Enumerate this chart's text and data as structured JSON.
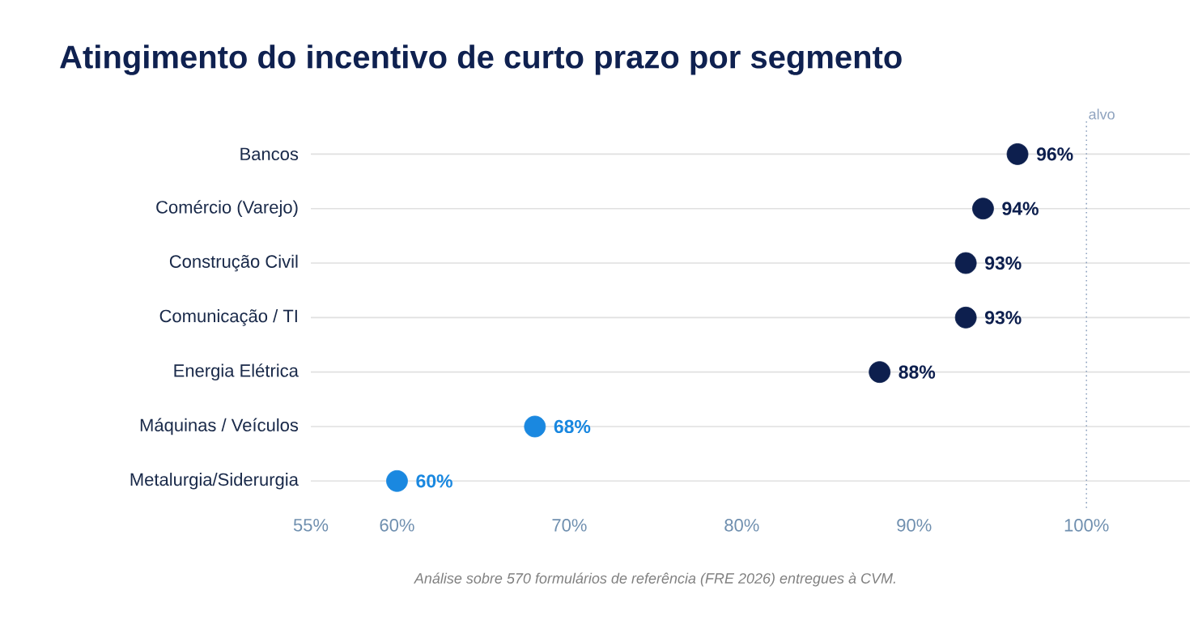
{
  "chart_data": {
    "type": "scatter",
    "title": "Atingimento do incentivo de curto prazo por segmento",
    "categories": [
      "Bancos",
      "Comércio (Varejo)",
      "Construção Civil",
      "Comunicação / TI",
      "Energia Elétrica",
      "Máquinas / Veículos",
      "Metalurgia/Siderurgia"
    ],
    "values": [
      96,
      94,
      93,
      93,
      88,
      68,
      60
    ],
    "value_labels": [
      "96%",
      "94%",
      "93%",
      "93%",
      "88%",
      "68%",
      "60%"
    ],
    "colors": [
      "#0d1f4e",
      "#0d1f4e",
      "#0d1f4e",
      "#0d1f4e",
      "#0d1f4e",
      "#1a88e0",
      "#1a88e0"
    ],
    "orientation": "horizontal",
    "marker": "circle",
    "grid": "y",
    "xlim": [
      55,
      106
    ],
    "xticks": [
      {
        "value": 55,
        "label": "55%"
      },
      {
        "value": 60,
        "label": "60%"
      },
      {
        "value": 70,
        "label": "70%"
      },
      {
        "value": 80,
        "label": "80%"
      },
      {
        "value": 90,
        "label": "90%"
      },
      {
        "value": 100,
        "label": "100%"
      }
    ],
    "ref_lines": [
      {
        "axis": "x",
        "value": 100,
        "label": "alvo",
        "color": "#8fa3bf",
        "line_style": "dotted"
      }
    ],
    "annotations": [
      "Análise sobre 570 formulários de referência (FRE 2026) entregues à CVM."
    ]
  }
}
